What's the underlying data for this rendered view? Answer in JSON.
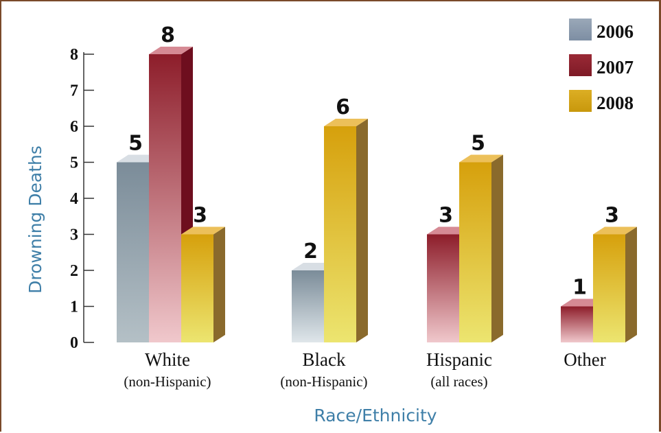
{
  "chart_data": {
    "type": "bar",
    "title": "",
    "xlabel": "Race/Ethnicity",
    "ylabel": "Drowning Deaths",
    "ylim": [
      0,
      8
    ],
    "yticks": [
      0,
      1,
      2,
      3,
      4,
      5,
      6,
      7,
      8
    ],
    "grid": false,
    "legend_position": "top-right",
    "categories": [
      {
        "label": "White",
        "sublabel": "(non-Hispanic)"
      },
      {
        "label": "Black",
        "sublabel": "(non-Hispanic)"
      },
      {
        "label": "Hispanic",
        "sublabel": "(all races)"
      },
      {
        "label": "Other",
        "sublabel": ""
      }
    ],
    "series": [
      {
        "name": "2006",
        "color": "#8a9aae",
        "values": [
          5,
          2,
          null,
          null
        ]
      },
      {
        "name": "2007",
        "color": "#8c1f2c",
        "values": [
          8,
          null,
          3,
          1
        ]
      },
      {
        "name": "2008",
        "color": "#d4a010",
        "values": [
          3,
          6,
          5,
          3
        ]
      }
    ]
  }
}
